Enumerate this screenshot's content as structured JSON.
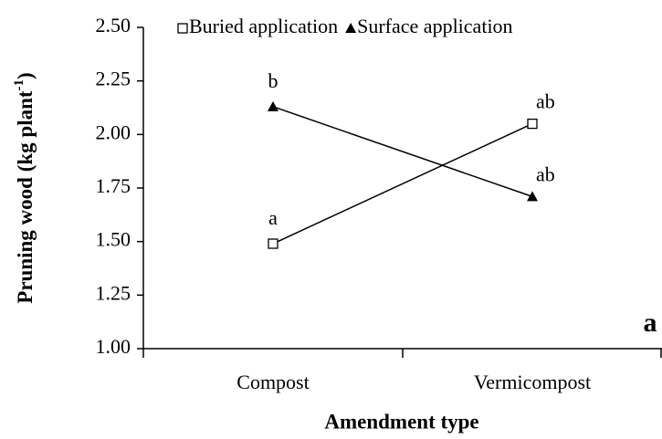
{
  "chart_data": {
    "type": "line",
    "xlabel": "Amendment type",
    "ylabel": {
      "text": "Pruning wood (kg plant",
      "sup": "-1",
      "end": ")"
    },
    "panel_label": "a",
    "categories": [
      "Compost",
      "Vermicompost"
    ],
    "series": [
      {
        "name": "Buried application",
        "color": "#000000",
        "marker": "square",
        "values": [
          1.49,
          2.05
        ],
        "point_labels": [
          "a",
          "ab"
        ]
      },
      {
        "name": "Surface application",
        "color": "#000000",
        "marker": "triangle",
        "values": [
          2.13,
          1.71
        ],
        "point_labels": [
          "b",
          "ab"
        ]
      }
    ],
    "ylim": [
      1.0,
      2.5
    ],
    "yticks": [
      {
        "value": 1.0,
        "label": "1.00"
      },
      1.25,
      {
        "value": 1.5,
        "label": "1.50"
      },
      1.75,
      {
        "value": 2.0,
        "label": "2.00"
      },
      2.25,
      {
        "value": 2.5,
        "label": "2.50"
      }
    ],
    "grid": false,
    "legend": "top"
  }
}
